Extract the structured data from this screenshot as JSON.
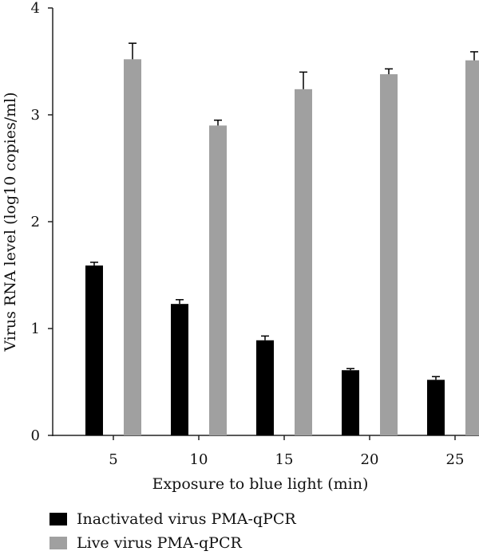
{
  "chart_data": {
    "type": "bar",
    "categories": [
      "5",
      "10",
      "15",
      "20",
      "25"
    ],
    "series": [
      {
        "name": "Inactivated virus PMA-qPCR",
        "color": "#000000",
        "values": [
          1.59,
          1.23,
          0.89,
          0.61,
          0.52
        ],
        "errors": [
          0.03,
          0.04,
          0.04,
          0.015,
          0.03
        ]
      },
      {
        "name": "Live virus PMA-qPCR",
        "color": "#a0a0a0",
        "values": [
          3.52,
          2.9,
          3.24,
          3.38,
          3.51
        ],
        "errors": [
          0.15,
          0.05,
          0.16,
          0.05,
          0.08
        ]
      }
    ],
    "xlabel": "Exposure to blue light (min)",
    "ylabel": "Virus RNA level (log10 copies/ml)",
    "ylim": [
      0,
      4
    ],
    "yticks": [
      0,
      1,
      2,
      3,
      4
    ],
    "grid": false,
    "legend_position": "bottom-left"
  }
}
